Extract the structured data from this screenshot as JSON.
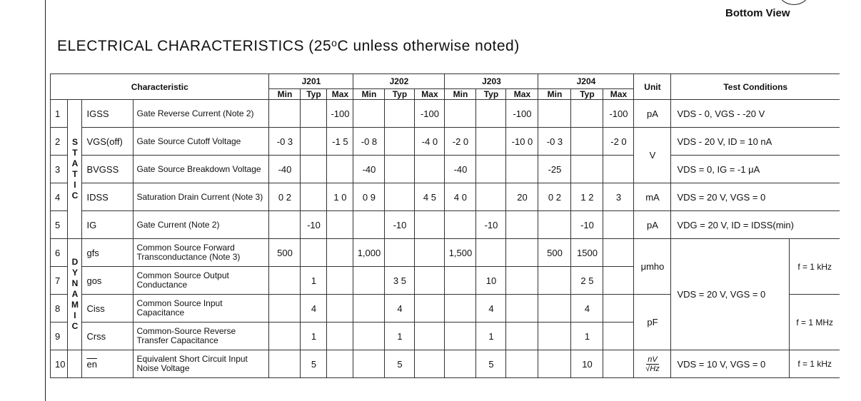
{
  "header": {
    "view_label": "Bottom View",
    "title": "ELECTRICAL CHARACTERISTICS (25",
    "title_degree": "o",
    "title_rest": "C unless otherwise noted)"
  },
  "table": {
    "characteristic_label": "Characteristic",
    "devices": [
      "J201",
      "J202",
      "J203",
      "J204"
    ],
    "subcols": [
      "Min",
      "Typ",
      "Max"
    ],
    "unit_label": "Unit",
    "test_conditions_label": "Test Conditions",
    "static_group": "S\nT\nA\nT\nI\nC",
    "dynamic_group": "D\nY\nN\nA\nM\nI\nC",
    "rows": [
      {
        "n": "1",
        "sym": "IGSS",
        "desc": "Gate Reverse Current (Note 2)",
        "vals": [
          "",
          "",
          "-100",
          "",
          "",
          "-100",
          "",
          "",
          "-100",
          "",
          "",
          "-100"
        ],
        "unit": "pA",
        "tc": "VDS - 0, VGS - -20 V"
      },
      {
        "n": "2",
        "sym": "VGS(off)",
        "desc": "Gate Source Cutoff Voltage",
        "vals": [
          "-0 3",
          "",
          "-1 5",
          "-0 8",
          "",
          "-4 0",
          "-2 0",
          "",
          "-10 0",
          "-0 3",
          "",
          "-2 0"
        ],
        "unit": "V",
        "tc": "VDS - 20 V, ID = 10 nA"
      },
      {
        "n": "3",
        "sym": "BVGSS",
        "desc": "Gate Source Breakdown Voltage",
        "vals": [
          "-40",
          "",
          "",
          "-40",
          "",
          "",
          "-40",
          "",
          "",
          "-25",
          "",
          ""
        ],
        "unit": "",
        "tc": "VDS = 0, IG = -1 μA"
      },
      {
        "n": "4",
        "sym": "IDSS",
        "desc": "Saturation Drain Current (Note 3)",
        "vals": [
          "0 2",
          "",
          "1 0",
          "0 9",
          "",
          "4 5",
          "4 0",
          "",
          "20",
          "0 2",
          "1 2",
          "3"
        ],
        "unit": "mA",
        "tc": "VDS = 20 V, VGS = 0"
      },
      {
        "n": "5",
        "sym": "IG",
        "desc": "Gate Current (Note 2)",
        "vals": [
          "",
          "-10",
          "",
          "",
          "-10",
          "",
          "",
          "-10",
          "",
          "",
          "-10",
          ""
        ],
        "unit": "pA",
        "tc": "VDG = 20 V, ID = IDSS(min)"
      },
      {
        "n": "6",
        "sym": "gfs",
        "desc": "Common Source Forward Transconductance (Note 3)",
        "vals": [
          "500",
          "",
          "",
          "1,000",
          "",
          "",
          "1,500",
          "",
          "",
          "500",
          "1500",
          ""
        ],
        "unit": "μmho",
        "tc": "VDS = 20 V, VGS = 0",
        "freq": "f = 1 kHz"
      },
      {
        "n": "7",
        "sym": "gos",
        "desc": "Common Source Output Conductance",
        "vals": [
          "",
          "1",
          "",
          "",
          "3 5",
          "",
          "",
          "10",
          "",
          "",
          "2 5",
          ""
        ]
      },
      {
        "n": "8",
        "sym": "Ciss",
        "desc": "Common Source Input Capacitance",
        "vals": [
          "",
          "4",
          "",
          "",
          "4",
          "",
          "",
          "4",
          "",
          "",
          "4",
          ""
        ],
        "unit": "pF",
        "freq": "f = 1 MHz"
      },
      {
        "n": "9",
        "sym": "Crss",
        "desc": "Common-Source Reverse Transfer Capacitance",
        "vals": [
          "",
          "1",
          "",
          "",
          "1",
          "",
          "",
          "1",
          "",
          "",
          "1",
          ""
        ]
      },
      {
        "n": "10",
        "sym": "en",
        "desc": "Equivalent Short Circuit Input Noise Voltage",
        "vals": [
          "",
          "5",
          "",
          "",
          "5",
          "",
          "",
          "5",
          "",
          "",
          "10",
          ""
        ],
        "unit_top": "nV",
        "unit_bottom": "√Hz",
        "tc": "VDS = 10 V, VGS = 0",
        "freq": "f = 1 kHz"
      }
    ]
  }
}
